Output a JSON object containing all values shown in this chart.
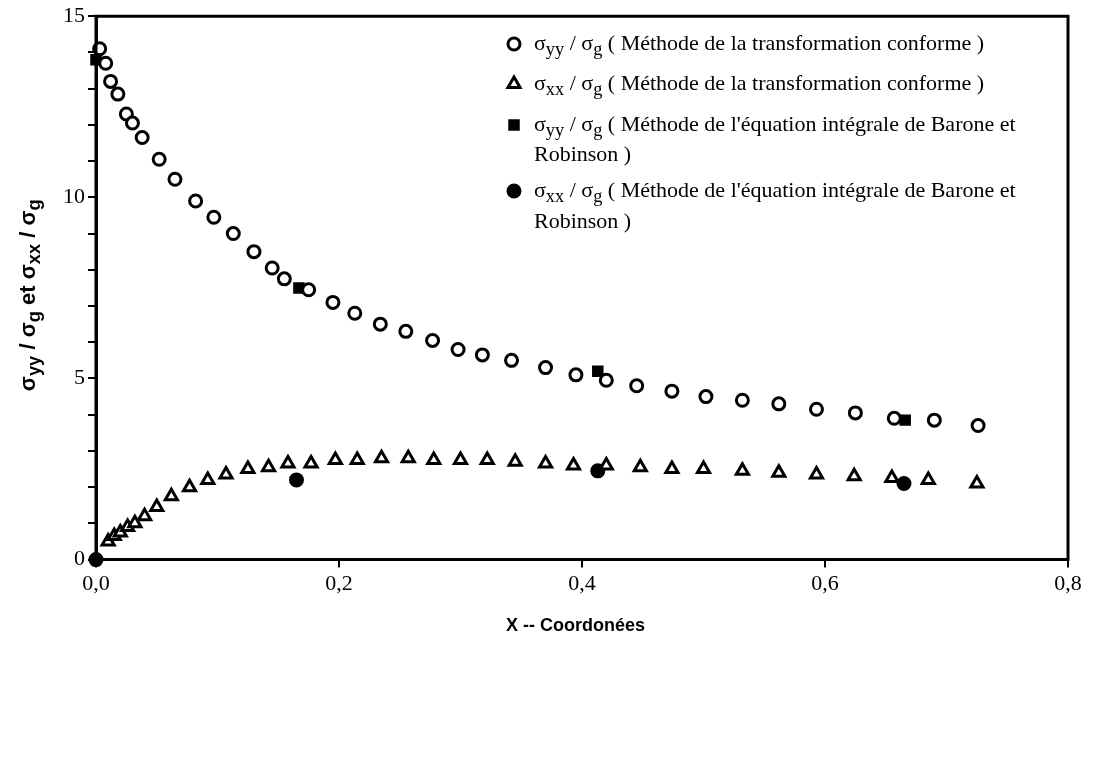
{
  "chart_data": {
    "type": "scatter",
    "xlabel": "X -- Coordonées",
    "ylabel": "σ$_{yy}$ / σ$_{g}$  et  σ$_{xx}$ / σ$_{g}$",
    "xlim": [
      0,
      0.8
    ],
    "xticks": [
      {
        "value": 0,
        "label": "0,0"
      },
      {
        "value": 0.2,
        "label": "0,2"
      },
      {
        "value": 0.4,
        "label": "0,4"
      },
      {
        "value": 0.6,
        "label": "0,6"
      },
      {
        "value": 0.8,
        "label": "0,8"
      }
    ],
    "ylim": [
      0,
      15
    ],
    "yticks": [
      0,
      {
        "value": 1,
        "label": null
      },
      {
        "value": 2,
        "label": null
      },
      {
        "value": 3,
        "label": null
      },
      {
        "value": 4,
        "label": null
      },
      5,
      {
        "value": 6,
        "label": null
      },
      {
        "value": 7,
        "label": null
      },
      {
        "value": 8,
        "label": null
      },
      {
        "value": 9,
        "label": null
      },
      10,
      {
        "value": 11,
        "label": null
      },
      {
        "value": 12,
        "label": null
      },
      {
        "value": 13,
        "label": null
      },
      {
        "value": 14,
        "label": null
      },
      15
    ],
    "grid": false,
    "legend": "top right",
    "series": [
      {
        "name": "σ$_{yy}$ / σ$_{g}$ ( Méthode de la transformation conforme )",
        "color": "#000000",
        "marker": "circle",
        "x": [
          0.003,
          0.008,
          0.012,
          0.018,
          0.025,
          0.03,
          0.038,
          0.052,
          0.065,
          0.082,
          0.097,
          0.113,
          0.13,
          0.145,
          0.155,
          0.175,
          0.195,
          0.213,
          0.234,
          0.255,
          0.277,
          0.298,
          0.318,
          0.342,
          0.37,
          0.395,
          0.42,
          0.445,
          0.474,
          0.502,
          0.532,
          0.562,
          0.593,
          0.625,
          0.657,
          0.69,
          0.726
        ],
        "values": [
          14.1,
          13.7,
          13.2,
          12.85,
          12.3,
          12.05,
          11.65,
          11.05,
          10.5,
          9.9,
          9.45,
          9.0,
          8.5,
          8.05,
          7.75,
          7.45,
          7.1,
          6.8,
          6.5,
          6.3,
          6.05,
          5.8,
          5.65,
          5.5,
          5.3,
          5.1,
          4.95,
          4.8,
          4.65,
          4.5,
          4.4,
          4.3,
          4.15,
          4.05,
          3.9,
          3.85,
          3.7
        ]
      },
      {
        "name": "σ$_{xx}$ / σ$_{g}$ ( Méthode de la transformation conforme )",
        "color": "#000000",
        "marker": "triangle",
        "x": [
          0.01,
          0.015,
          0.02,
          0.026,
          0.032,
          0.04,
          0.05,
          0.062,
          0.077,
          0.092,
          0.107,
          0.125,
          0.142,
          0.158,
          0.177,
          0.197,
          0.215,
          0.235,
          0.257,
          0.278,
          0.3,
          0.322,
          0.345,
          0.37,
          0.393,
          0.42,
          0.448,
          0.474,
          0.5,
          0.532,
          0.562,
          0.593,
          0.624,
          0.655,
          0.685,
          0.725
        ],
        "values": [
          0.5,
          0.65,
          0.75,
          0.9,
          1.0,
          1.2,
          1.45,
          1.75,
          2.0,
          2.2,
          2.35,
          2.5,
          2.55,
          2.65,
          2.65,
          2.75,
          2.75,
          2.8,
          2.8,
          2.75,
          2.75,
          2.75,
          2.7,
          2.65,
          2.6,
          2.6,
          2.55,
          2.5,
          2.5,
          2.45,
          2.4,
          2.35,
          2.3,
          2.25,
          2.2,
          2.1
        ]
      },
      {
        "name": "σ$_{yy}$ / σ$_{g}$ ( Méthode de l'équation intégrale de Barone et Robinson )",
        "color": "#000000",
        "marker": "square",
        "x": [
          0.0,
          0.167,
          0.413,
          0.666
        ],
        "values": [
          13.8,
          7.5,
          5.2,
          3.85
        ]
      },
      {
        "name": "σ$_{xx}$ / σ$_{g}$ ( Méthode de l'équation intégrale de Barone et Robinson )",
        "color": "#000000",
        "marker": "circle",
        "x": [
          0.0,
          0.165,
          0.413,
          0.665
        ],
        "values": [
          0.0,
          2.2,
          2.45,
          2.1
        ]
      }
    ]
  }
}
